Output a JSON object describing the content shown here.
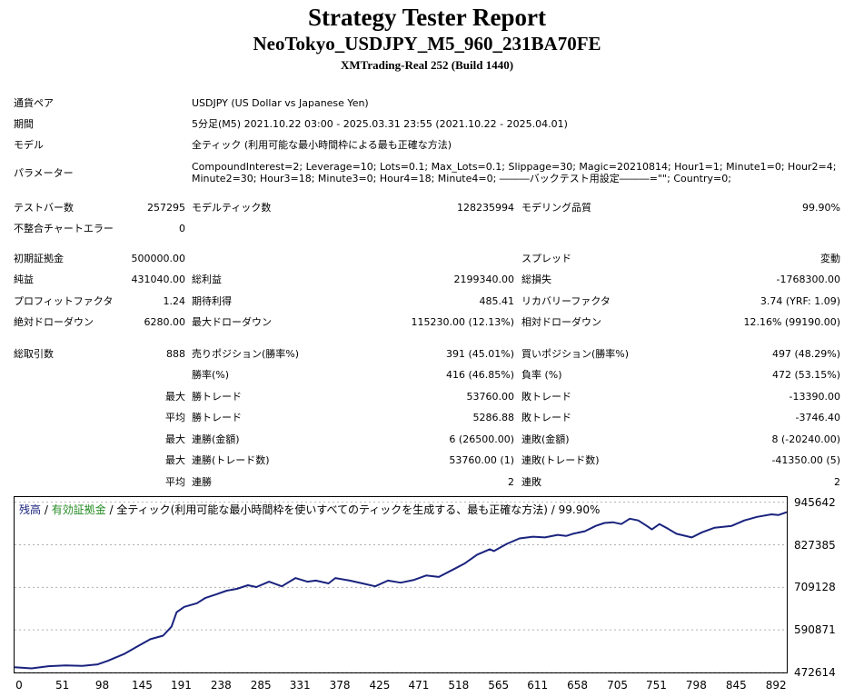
{
  "report": {
    "title": "Strategy Tester Report",
    "subtitle": "NeoTokyo_USDJPY_M5_960_231BA70FE",
    "server": "XMTrading-Real 252 (Build 1440)"
  },
  "info": {
    "symbol": {
      "label": "通貨ペア",
      "value": "USDJPY (US Dollar vs Japanese Yen)"
    },
    "period": {
      "label": "期間",
      "value": "5分足(M5) 2021.10.22 03:00 - 2025.03.31 23:55 (2021.10.22 - 2025.04.01)"
    },
    "model": {
      "label": "モデル",
      "value": "全ティック (利用可能な最小時間枠による最も正確な方法)"
    },
    "params": {
      "label": "パラメーター",
      "line1": "CompoundInterest=2; Leverage=10; Lots=0.1; Max_Lots=0.1; Slippage=30; Magic=20210814; Hour1=1; Minute1=0; Hour2=4;",
      "line2": "Minute2=30; Hour3=18; Minute3=0; Hour4=18; Minute4=0; ―――バックテスト用設定―――=\"\"; Country=0;"
    }
  },
  "stats": {
    "bars": {
      "label": "テストバー数",
      "value": "257295"
    },
    "ticks": {
      "label": "モデルティック数",
      "value": "128235994"
    },
    "quality": {
      "label": "モデリング品質",
      "value": "99.90%"
    },
    "mismatch": {
      "label": "不整合チャートエラー",
      "value": "0"
    },
    "deposit": {
      "label": "初期証拠金",
      "value": "500000.00"
    },
    "spread": {
      "label": "スプレッド",
      "value": "変動"
    },
    "net_profit": {
      "label": "純益",
      "value": "431040.00"
    },
    "gross_profit": {
      "label": "総利益",
      "value": "2199340.00"
    },
    "gross_loss": {
      "label": "総損失",
      "value": "-1768300.00"
    },
    "profit_factor": {
      "label": "プロフィットファクタ",
      "value": "1.24"
    },
    "expected_payoff": {
      "label": "期待利得",
      "value": "485.41"
    },
    "recovery_factor": {
      "label": "リカバリーファクタ",
      "value": "3.74 (YRF: 1.09)"
    },
    "abs_dd": {
      "label": "絶対ドローダウン",
      "value": "6280.00"
    },
    "max_dd": {
      "label": "最大ドローダウン",
      "value": "115230.00 (12.13%)"
    },
    "rel_dd": {
      "label": "相対ドローダウン",
      "value": "12.16% (99190.00)"
    },
    "total_trades": {
      "label": "総取引数",
      "value": "888"
    },
    "short_pos": {
      "label": "売りポジション(勝率%)",
      "value": "391 (45.01%)"
    },
    "long_pos": {
      "label": "買いポジション(勝率%)",
      "value": "497 (48.29%)"
    },
    "win_rate": {
      "label": "勝率(%)",
      "value": "416 (46.85%)"
    },
    "loss_rate": {
      "label": "負率 (%)",
      "value": "472 (53.15%)"
    },
    "largest_label": "最大",
    "largest_win": {
      "label": "勝トレード",
      "value": "53760.00"
    },
    "largest_loss": {
      "label": "敗トレード",
      "value": "-13390.00"
    },
    "average_label": "平均",
    "avg_win": {
      "label": "勝トレード",
      "value": "5286.88"
    },
    "avg_loss": {
      "label": "敗トレード",
      "value": "-3746.40"
    },
    "max_label": "最大",
    "max_consec_wins_money": {
      "label": "連勝(金額)",
      "value": "6 (26500.00)"
    },
    "max_consec_losses_money": {
      "label": "連敗(金額)",
      "value": "8 (-20240.00)"
    },
    "max2_label": "最大",
    "max_consec_profit": {
      "label": "連勝(トレード数)",
      "value": "53760.00 (1)"
    },
    "max_consec_loss": {
      "label": "連敗(トレード数)",
      "value": "-41350.00 (5)"
    },
    "avg2_label": "平均",
    "avg_consec_wins": {
      "label": "連勝",
      "value": "2"
    },
    "avg_consec_losses": {
      "label": "連敗",
      "value": "2"
    }
  },
  "chart_legend": {
    "balance": "残高",
    "sep1": " / ",
    "equity": "有効証拠金",
    "sep2": " / ",
    "description": "全ティック(利用可能な最小時間枠を使いすべてのティックを生成する、最も正確な方法) / 99.90%"
  },
  "colors": {
    "balance": "#1a237e",
    "equity": "#228b22",
    "grid": "#b0b0b0"
  },
  "chart_data": {
    "type": "line",
    "xlabel": "",
    "ylabel": "",
    "x_ticks": [
      "0",
      "51",
      "98",
      "145",
      "191",
      "238",
      "285",
      "331",
      "378",
      "425",
      "471",
      "518",
      "565",
      "611",
      "658",
      "705",
      "751",
      "798",
      "845",
      "892"
    ],
    "y_ticks": [
      "945642",
      "827385",
      "709128",
      "590871",
      "472614"
    ],
    "xlim": [
      0,
      910
    ],
    "ylim": [
      472614,
      960000
    ],
    "grid": true,
    "series": [
      {
        "name": "残高",
        "x": [
          0,
          20,
          40,
          60,
          80,
          98,
          110,
          130,
          145,
          160,
          175,
          185,
          191,
          200,
          215,
          225,
          238,
          250,
          262,
          275,
          285,
          300,
          315,
          331,
          345,
          355,
          370,
          378,
          395,
          410,
          425,
          440,
          455,
          471,
          485,
          500,
          518,
          530,
          545,
          560,
          565,
          580,
          595,
          611,
          625,
          640,
          650,
          658,
          672,
          685,
          695,
          705,
          715,
          725,
          735,
          745,
          751,
          760,
          770,
          780,
          798,
          810,
          825,
          845,
          860,
          875,
          892,
          900,
          910
        ],
        "values": [
          487000,
          484000,
          490000,
          492000,
          491000,
          495000,
          505000,
          525000,
          545000,
          565000,
          575000,
          600000,
          640000,
          655000,
          665000,
          680000,
          690000,
          700000,
          705000,
          715000,
          710000,
          725000,
          712000,
          735000,
          725000,
          728000,
          720000,
          735000,
          728000,
          720000,
          712000,
          728000,
          722000,
          730000,
          742000,
          738000,
          760000,
          775000,
          800000,
          815000,
          810000,
          830000,
          845000,
          850000,
          848000,
          855000,
          852000,
          858000,
          865000,
          880000,
          888000,
          890000,
          885000,
          900000,
          895000,
          880000,
          870000,
          885000,
          872000,
          858000,
          848000,
          862000,
          875000,
          880000,
          895000,
          905000,
          912000,
          910000,
          918000
        ]
      }
    ]
  }
}
